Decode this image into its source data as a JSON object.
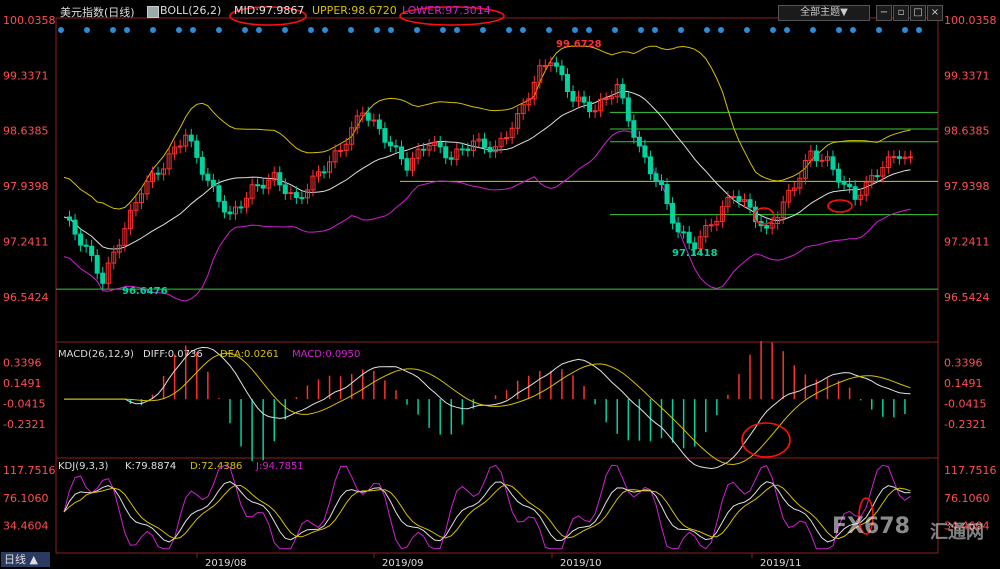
{
  "toolbar": {
    "instrument": "美元指数(日线)",
    "indicator": "BOLL(26,2)",
    "mid": "MID:97.9867",
    "upper": "UPPER:98.6720",
    "lower": "LOWER:97.3014",
    "theme_button": "全部主题▼",
    "period_tab": "日线 ▲"
  },
  "colors": {
    "up": "#ff3030",
    "down": "#00d2a0",
    "mid_line": "#e0e0e0",
    "upper_line": "#d4c000",
    "lower_line": "#d020d0",
    "support_lines": "#33cc33",
    "axis_label": "#ff5050"
  },
  "watermark": {
    "brand": "FX678",
    "cn": "汇通网"
  },
  "chart_data": [
    {
      "type": "candlestick",
      "title": "美元指数(日线)",
      "ylim": [
        96.25,
        100.0358
      ],
      "yticks": [
        "100.0358",
        "99.3371",
        "98.6385",
        "97.9398",
        "97.2411",
        "96.5424"
      ],
      "xticks": [
        "2019/08",
        "2019/09",
        "2019/10",
        "2019/11"
      ],
      "annotations": [
        "99.6728",
        "97.1418",
        "96.6476"
      ],
      "bollinger": {
        "period": 26,
        "k": 2,
        "mid": 97.9867,
        "upper": 98.672,
        "lower": 97.3014
      },
      "horizontal_levels": [
        98.87,
        98.66,
        98.5,
        98.0,
        97.58,
        96.64
      ]
    },
    {
      "type": "line+bar",
      "title": "MACD",
      "legend": [
        "MACD(26,12,9)",
        "DIFF:0.0736",
        "DEA:0.0261",
        "MACD:0.0950"
      ],
      "ylim": [
        -0.55,
        0.44
      ],
      "yticks": [
        "0.3396",
        "0.1491",
        "-0.0415",
        "-0.2321"
      ]
    },
    {
      "type": "line",
      "title": "KDJ",
      "legend": [
        "KDJ(9,3,3)",
        "K:79.8874",
        "D:72.4386",
        "J:94.7851"
      ],
      "ylim": [
        -5,
        130
      ],
      "yticks": [
        "117.7516",
        "76.1060",
        "34.4604"
      ]
    }
  ]
}
